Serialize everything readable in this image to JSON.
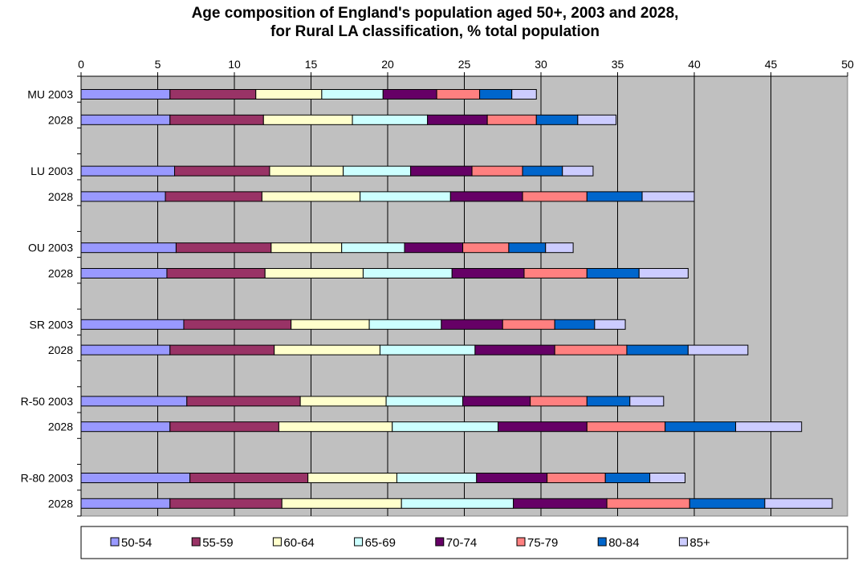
{
  "chart_data": {
    "type": "bar",
    "orientation": "horizontal",
    "stacked": true,
    "title": "Age composition of England's population aged 50+, 2003 and 2028, for Rural LA classification, % total population",
    "title_lines": [
      "Age composition of England's population aged 50+, 2003 and 2028,",
      "for Rural LA classification, % total population"
    ],
    "xlabel": "",
    "ylabel": "",
    "xlim": [
      0,
      50
    ],
    "x_ticks": [
      0,
      5,
      10,
      15,
      20,
      25,
      30,
      35,
      40,
      45,
      50
    ],
    "x_axis_position": "top",
    "grid": true,
    "plot_background": "#c0c0c0",
    "legend_position": "bottom",
    "categories": [
      "MU 2003",
      "2028",
      "LU 2003",
      "2028",
      "OU 2003",
      "2028",
      "SR 2003",
      "2028",
      "R-50 2003",
      "2028",
      "R-80 2003",
      "2028"
    ],
    "series": [
      {
        "name": "50-54",
        "color": "#9999ff",
        "values": [
          5.8,
          5.8,
          6.1,
          5.5,
          6.2,
          5.6,
          6.7,
          5.8,
          6.9,
          5.8,
          7.1,
          5.8
        ]
      },
      {
        "name": "55-59",
        "color": "#993366",
        "values": [
          5.6,
          6.1,
          6.2,
          6.3,
          6.2,
          6.4,
          7.0,
          6.8,
          7.4,
          7.1,
          7.7,
          7.3
        ]
      },
      {
        "name": "60-64",
        "color": "#ffffcc",
        "values": [
          4.3,
          5.8,
          4.8,
          6.4,
          4.6,
          6.4,
          5.1,
          6.9,
          5.6,
          7.4,
          5.8,
          7.8
        ]
      },
      {
        "name": "65-69",
        "color": "#ccffff",
        "values": [
          4.0,
          4.9,
          4.4,
          5.9,
          4.1,
          5.8,
          4.7,
          6.2,
          5.0,
          6.9,
          5.2,
          7.3
        ]
      },
      {
        "name": "70-74",
        "color": "#660066",
        "values": [
          3.5,
          3.9,
          4.0,
          4.7,
          3.8,
          4.7,
          4.0,
          5.2,
          4.4,
          5.8,
          4.6,
          6.1
        ]
      },
      {
        "name": "75-79",
        "color": "#ff8080",
        "values": [
          2.8,
          3.2,
          3.3,
          4.2,
          3.0,
          4.1,
          3.4,
          4.7,
          3.7,
          5.1,
          3.8,
          5.4
        ]
      },
      {
        "name": "80-84",
        "color": "#0066cc",
        "values": [
          2.1,
          2.7,
          2.6,
          3.6,
          2.4,
          3.4,
          2.6,
          4.0,
          2.8,
          4.6,
          2.9,
          4.9
        ]
      },
      {
        "name": "85+",
        "color": "#ccccff",
        "values": [
          1.6,
          2.5,
          2.0,
          3.4,
          1.8,
          3.2,
          2.0,
          3.9,
          2.2,
          4.3,
          2.3,
          4.4
        ]
      }
    ]
  }
}
